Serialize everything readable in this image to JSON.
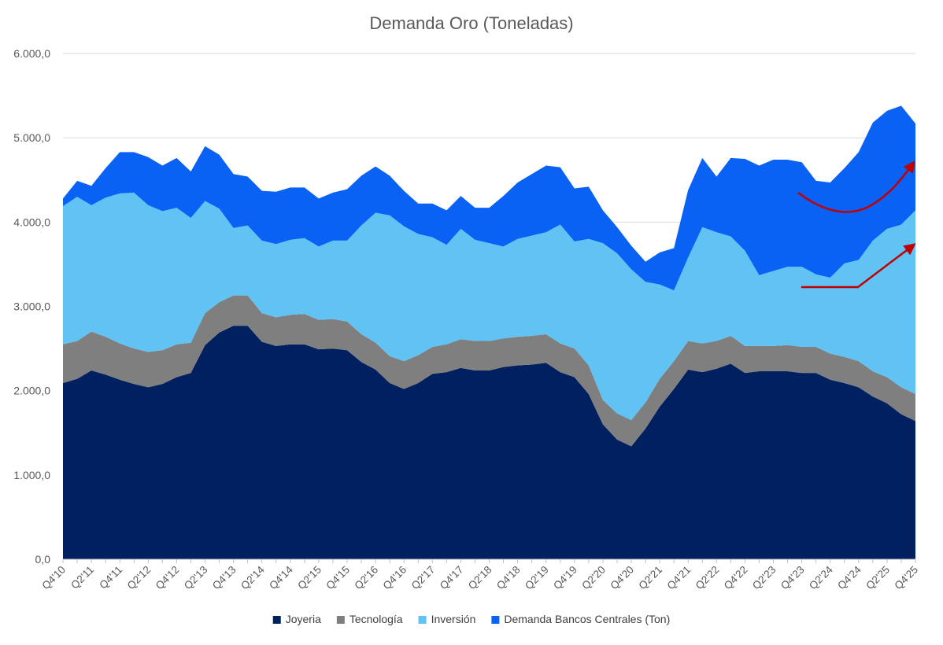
{
  "chart_data": {
    "type": "area",
    "stacked": true,
    "title": "Demanda Oro (Toneladas)",
    "xlabel": "",
    "ylabel": "",
    "ylim": [
      0,
      6000
    ],
    "yticks": [
      {
        "value": 0,
        "label": "0,0"
      },
      {
        "value": 1000,
        "label": "1.000,0"
      },
      {
        "value": 2000,
        "label": "2.000,0"
      },
      {
        "value": 3000,
        "label": "3.000,0"
      },
      {
        "value": 4000,
        "label": "4.000,0"
      },
      {
        "value": 5000,
        "label": "5.000,0"
      },
      {
        "value": 6000,
        "label": "6.000,0"
      }
    ],
    "grid": true,
    "legend_position": "bottom",
    "categories": [
      "Q4'10",
      "Q1'11",
      "Q2'11",
      "Q3'11",
      "Q4'11",
      "Q1'12",
      "Q2'12",
      "Q3'12",
      "Q4'12",
      "Q1'13",
      "Q2'13",
      "Q3'13",
      "Q4'13",
      "Q1'14",
      "Q2'14",
      "Q3'14",
      "Q4'14",
      "Q1'15",
      "Q2'15",
      "Q3'15",
      "Q4'15",
      "Q1'16",
      "Q2'16",
      "Q3'16",
      "Q4'16",
      "Q1'17",
      "Q2'17",
      "Q3'17",
      "Q4'17",
      "Q1'18",
      "Q2'18",
      "Q3'18",
      "Q4'18",
      "Q1'19",
      "Q2'19",
      "Q3'19",
      "Q4'19",
      "Q1'20",
      "Q2'20",
      "Q3'20",
      "Q4'20",
      "Q1'21",
      "Q2'21",
      "Q3'21",
      "Q4'21",
      "Q1'22",
      "Q2'22",
      "Q3'22",
      "Q4'22",
      "Q1'23",
      "Q2'23",
      "Q3'23",
      "Q4'23",
      "Q1'24",
      "Q2'24",
      "Q3'24",
      "Q4'24",
      "Q1'25",
      "Q2'25",
      "Q3'25",
      "Q4'25"
    ],
    "series": [
      {
        "name": "Joyeria",
        "color": "#002060",
        "values": [
          2090,
          2140,
          2240,
          2190,
          2130,
          2080,
          2040,
          2080,
          2160,
          2210,
          2540,
          2690,
          2770,
          2770,
          2580,
          2530,
          2550,
          2550,
          2490,
          2500,
          2480,
          2340,
          2250,
          2090,
          2020,
          2090,
          2200,
          2220,
          2270,
          2240,
          2240,
          2280,
          2300,
          2310,
          2330,
          2220,
          2160,
          1960,
          1600,
          1420,
          1340,
          1550,
          1810,
          2020,
          2250,
          2220,
          2260,
          2320,
          2210,
          2230,
          2230,
          2230,
          2210,
          2210,
          2130,
          2090,
          2040,
          1930,
          1850,
          1720,
          1640
        ]
      },
      {
        "name": "Tecnología",
        "color": "#7f7f7f",
        "values": [
          460,
          450,
          460,
          450,
          430,
          420,
          420,
          400,
          390,
          360,
          380,
          360,
          360,
          360,
          340,
          340,
          350,
          360,
          350,
          350,
          340,
          330,
          320,
          320,
          330,
          330,
          320,
          330,
          340,
          350,
          350,
          340,
          340,
          340,
          340,
          340,
          340,
          340,
          290,
          310,
          310,
          310,
          330,
          330,
          340,
          340,
          330,
          330,
          320,
          300,
          300,
          310,
          310,
          310,
          310,
          310,
          310,
          300,
          310,
          320,
          320
        ]
      },
      {
        "name": "Inversión",
        "color": "#61c2f4",
        "values": [
          1640,
          1710,
          1500,
          1650,
          1780,
          1850,
          1740,
          1650,
          1620,
          1480,
          1330,
          1110,
          800,
          830,
          860,
          870,
          890,
          900,
          870,
          930,
          960,
          1290,
          1540,
          1670,
          1600,
          1440,
          1300,
          1180,
          1310,
          1200,
          1160,
          1090,
          1160,
          1190,
          1210,
          1410,
          1270,
          1500,
          1860,
          1900,
          1790,
          1430,
          1120,
          840,
          990,
          1380,
          1290,
          1180,
          1130,
          840,
          890,
          930,
          950,
          860,
          900,
          1110,
          1200,
          1550,
          1760,
          1930,
          2180
        ]
      },
      {
        "name": "Demanda Bancos Centrales (Ton)",
        "color": "#0a62f5",
        "values": [
          90,
          190,
          230,
          350,
          490,
          480,
          570,
          540,
          590,
          550,
          650,
          640,
          640,
          580,
          590,
          620,
          620,
          600,
          570,
          570,
          610,
          590,
          550,
          470,
          420,
          360,
          400,
          410,
          390,
          380,
          420,
          600,
          670,
          730,
          790,
          680,
          630,
          620,
          390,
          310,
          280,
          240,
          380,
          500,
          800,
          820,
          660,
          930,
          1090,
          1300,
          1320,
          1270,
          1240,
          1110,
          1130,
          1130,
          1280,
          1400,
          1400,
          1410,
          1030
        ]
      }
    ],
    "xtick_labels": [
      "Q4'10",
      "Q2'11",
      "Q4'11",
      "Q2'12",
      "Q4'12",
      "Q2'13",
      "Q4'13",
      "Q2'14",
      "Q4'14",
      "Q2'15",
      "Q4'15",
      "Q2'16",
      "Q4'16",
      "Q2'17",
      "Q4'17",
      "Q2'18",
      "Q4'18",
      "Q2'19",
      "Q4'19",
      "Q2'20",
      "Q4'20",
      "Q2'21",
      "Q4'21",
      "Q2'22",
      "Q4'22",
      "Q2'23",
      "Q4'23",
      "Q2'24",
      "Q4'24",
      "Q2'25",
      "Q4'25"
    ],
    "annotation_color": "#c00000"
  }
}
